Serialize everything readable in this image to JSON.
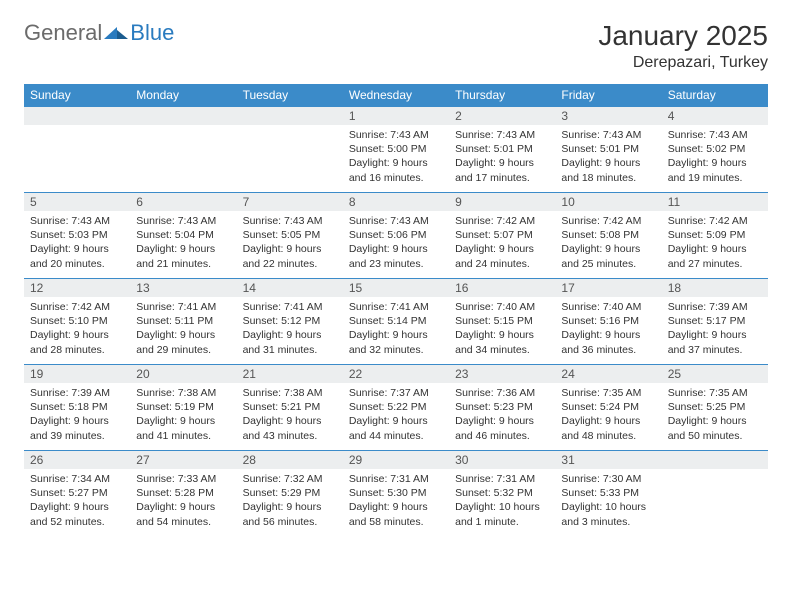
{
  "logo": {
    "general": "General",
    "blue": "Blue"
  },
  "title": "January 2025",
  "location": "Derepazari, Turkey",
  "colors": {
    "header_bg": "#3b8bc9",
    "header_text": "#ffffff",
    "daynum_bg": "#eceeef",
    "border": "#3b8bc9",
    "logo_gray": "#6b6b6b",
    "logo_blue": "#2a7bbf"
  },
  "day_labels": [
    "Sunday",
    "Monday",
    "Tuesday",
    "Wednesday",
    "Thursday",
    "Friday",
    "Saturday"
  ],
  "weeks": [
    [
      null,
      null,
      null,
      {
        "n": "1",
        "sunrise": "7:43 AM",
        "sunset": "5:00 PM",
        "daylight": "9 hours and 16 minutes."
      },
      {
        "n": "2",
        "sunrise": "7:43 AM",
        "sunset": "5:01 PM",
        "daylight": "9 hours and 17 minutes."
      },
      {
        "n": "3",
        "sunrise": "7:43 AM",
        "sunset": "5:01 PM",
        "daylight": "9 hours and 18 minutes."
      },
      {
        "n": "4",
        "sunrise": "7:43 AM",
        "sunset": "5:02 PM",
        "daylight": "9 hours and 19 minutes."
      }
    ],
    [
      {
        "n": "5",
        "sunrise": "7:43 AM",
        "sunset": "5:03 PM",
        "daylight": "9 hours and 20 minutes."
      },
      {
        "n": "6",
        "sunrise": "7:43 AM",
        "sunset": "5:04 PM",
        "daylight": "9 hours and 21 minutes."
      },
      {
        "n": "7",
        "sunrise": "7:43 AM",
        "sunset": "5:05 PM",
        "daylight": "9 hours and 22 minutes."
      },
      {
        "n": "8",
        "sunrise": "7:43 AM",
        "sunset": "5:06 PM",
        "daylight": "9 hours and 23 minutes."
      },
      {
        "n": "9",
        "sunrise": "7:42 AM",
        "sunset": "5:07 PM",
        "daylight": "9 hours and 24 minutes."
      },
      {
        "n": "10",
        "sunrise": "7:42 AM",
        "sunset": "5:08 PM",
        "daylight": "9 hours and 25 minutes."
      },
      {
        "n": "11",
        "sunrise": "7:42 AM",
        "sunset": "5:09 PM",
        "daylight": "9 hours and 27 minutes."
      }
    ],
    [
      {
        "n": "12",
        "sunrise": "7:42 AM",
        "sunset": "5:10 PM",
        "daylight": "9 hours and 28 minutes."
      },
      {
        "n": "13",
        "sunrise": "7:41 AM",
        "sunset": "5:11 PM",
        "daylight": "9 hours and 29 minutes."
      },
      {
        "n": "14",
        "sunrise": "7:41 AM",
        "sunset": "5:12 PM",
        "daylight": "9 hours and 31 minutes."
      },
      {
        "n": "15",
        "sunrise": "7:41 AM",
        "sunset": "5:14 PM",
        "daylight": "9 hours and 32 minutes."
      },
      {
        "n": "16",
        "sunrise": "7:40 AM",
        "sunset": "5:15 PM",
        "daylight": "9 hours and 34 minutes."
      },
      {
        "n": "17",
        "sunrise": "7:40 AM",
        "sunset": "5:16 PM",
        "daylight": "9 hours and 36 minutes."
      },
      {
        "n": "18",
        "sunrise": "7:39 AM",
        "sunset": "5:17 PM",
        "daylight": "9 hours and 37 minutes."
      }
    ],
    [
      {
        "n": "19",
        "sunrise": "7:39 AM",
        "sunset": "5:18 PM",
        "daylight": "9 hours and 39 minutes."
      },
      {
        "n": "20",
        "sunrise": "7:38 AM",
        "sunset": "5:19 PM",
        "daylight": "9 hours and 41 minutes."
      },
      {
        "n": "21",
        "sunrise": "7:38 AM",
        "sunset": "5:21 PM",
        "daylight": "9 hours and 43 minutes."
      },
      {
        "n": "22",
        "sunrise": "7:37 AM",
        "sunset": "5:22 PM",
        "daylight": "9 hours and 44 minutes."
      },
      {
        "n": "23",
        "sunrise": "7:36 AM",
        "sunset": "5:23 PM",
        "daylight": "9 hours and 46 minutes."
      },
      {
        "n": "24",
        "sunrise": "7:35 AM",
        "sunset": "5:24 PM",
        "daylight": "9 hours and 48 minutes."
      },
      {
        "n": "25",
        "sunrise": "7:35 AM",
        "sunset": "5:25 PM",
        "daylight": "9 hours and 50 minutes."
      }
    ],
    [
      {
        "n": "26",
        "sunrise": "7:34 AM",
        "sunset": "5:27 PM",
        "daylight": "9 hours and 52 minutes."
      },
      {
        "n": "27",
        "sunrise": "7:33 AM",
        "sunset": "5:28 PM",
        "daylight": "9 hours and 54 minutes."
      },
      {
        "n": "28",
        "sunrise": "7:32 AM",
        "sunset": "5:29 PM",
        "daylight": "9 hours and 56 minutes."
      },
      {
        "n": "29",
        "sunrise": "7:31 AM",
        "sunset": "5:30 PM",
        "daylight": "9 hours and 58 minutes."
      },
      {
        "n": "30",
        "sunrise": "7:31 AM",
        "sunset": "5:32 PM",
        "daylight": "10 hours and 1 minute."
      },
      {
        "n": "31",
        "sunrise": "7:30 AM",
        "sunset": "5:33 PM",
        "daylight": "10 hours and 3 minutes."
      },
      null
    ]
  ],
  "labels": {
    "sunrise": "Sunrise:",
    "sunset": "Sunset:",
    "daylight": "Daylight:"
  }
}
